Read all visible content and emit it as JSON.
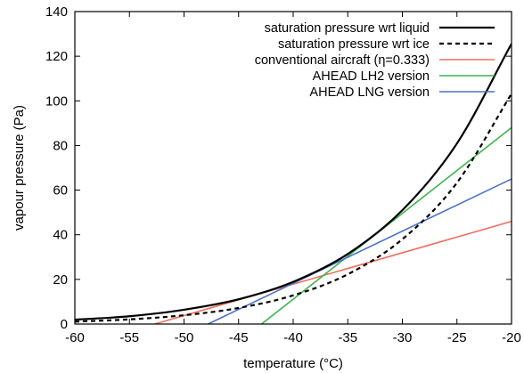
{
  "chart_data": {
    "type": "line",
    "title": "",
    "xlabel": "temperature (°C)",
    "ylabel": "vapour pressure (Pa)",
    "xlim": [
      -60,
      -20
    ],
    "ylim": [
      0,
      140
    ],
    "xticks": [
      -60,
      -55,
      -50,
      -45,
      -40,
      -35,
      -30,
      -25,
      -20
    ],
    "xtick_labels": [
      "-60",
      "-55",
      "-50",
      "-45",
      "-40",
      "-35",
      "-30",
      "-25",
      "-20"
    ],
    "yticks": [
      0,
      20,
      40,
      60,
      80,
      100,
      120,
      140
    ],
    "ytick_labels": [
      "0",
      "20",
      "40",
      "60",
      "80",
      "100",
      "120",
      "140"
    ],
    "grid": false,
    "legend_position": "top-right",
    "series": [
      {
        "name": "saturation pressure wrt liquid",
        "color": "#000000",
        "style": "solid",
        "x": [
          -60,
          -55,
          -50,
          -45,
          -40,
          -35,
          -30,
          -25,
          -20
        ],
        "y": [
          1.95,
          3.5,
          6.4,
          11.1,
          18.9,
          31.4,
          51.0,
          80.9,
          125.6
        ]
      },
      {
        "name": "saturation pressure wrt ice",
        "color": "#000000",
        "style": "dashed",
        "x": [
          -60,
          -55,
          -50,
          -45,
          -40,
          -35,
          -30,
          -25,
          -20
        ],
        "y": [
          1.08,
          2.09,
          3.94,
          7.2,
          12.84,
          22.3,
          38.0,
          63.3,
          103.2
        ]
      },
      {
        "name": "conventional aircraft (η=0.333)",
        "color": "#f07060",
        "style": "solid",
        "x": [
          -52.7,
          -20
        ],
        "y": [
          0,
          46
        ]
      },
      {
        "name": "AHEAD LH2 version",
        "color": "#3cb44b",
        "style": "solid",
        "x": [
          -42.9,
          -20
        ],
        "y": [
          0,
          88
        ]
      },
      {
        "name": "AHEAD LNG version",
        "color": "#4a72c8",
        "style": "solid",
        "x": [
          -47.8,
          -20
        ],
        "y": [
          0,
          65
        ]
      }
    ]
  }
}
